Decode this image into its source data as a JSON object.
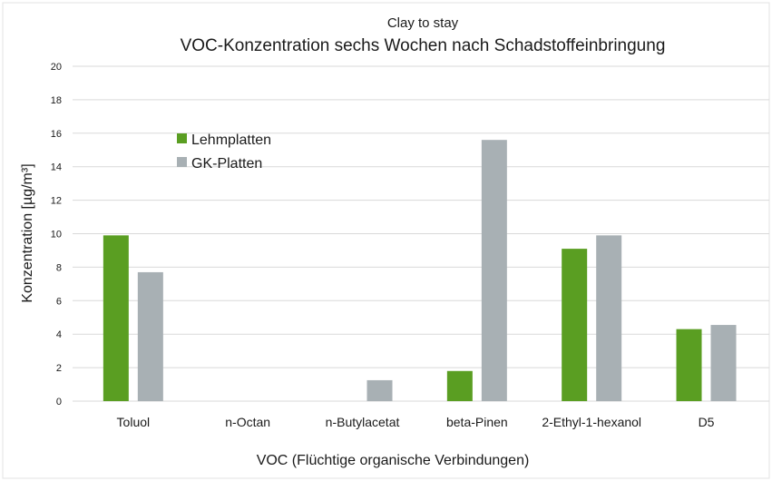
{
  "chart_data": {
    "type": "bar",
    "subtitle": "Clay to stay",
    "title": "VOC-Konzentration sechs Wochen nach Schadstoffeinbringung",
    "xlabel": "VOC (Flüchtige organische Verbindungen)",
    "ylabel": "Konzentration [µg/m³]",
    "ylim": [
      0,
      20
    ],
    "yticks": [
      "0",
      "2",
      "4",
      "6",
      "8",
      "10",
      "12",
      "14",
      "16",
      "18",
      "20"
    ],
    "categories": [
      "Toluol",
      "n-Octan",
      "n-Butylacetat",
      "beta-Pinen",
      "2-Ethyl-1-hexanol",
      "D5"
    ],
    "series": [
      {
        "name": "Lehmplatten",
        "color": "#5a9e22",
        "values": [
          9.9,
          0,
          0,
          1.8,
          9.1,
          4.3
        ]
      },
      {
        "name": "GK-Platten",
        "color": "#a8b0b4",
        "values": [
          7.7,
          0,
          1.25,
          15.6,
          9.9,
          4.55
        ]
      }
    ],
    "grid": true,
    "legend_position": "top-left"
  }
}
